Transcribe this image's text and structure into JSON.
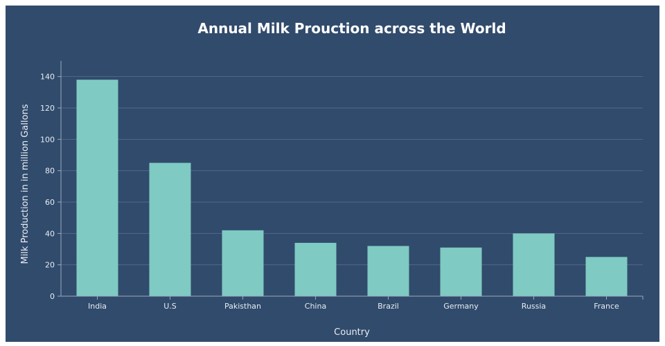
{
  "chart_data": {
    "type": "bar",
    "title": "Annual Milk Prouction across the World",
    "xlabel": "Country",
    "ylabel": "Milk Production in in million Gallons",
    "categories": [
      "India",
      "U.S",
      "Pakisthan",
      "China",
      "Brazil",
      "Germany",
      "Russia",
      "France"
    ],
    "values": [
      138,
      85,
      42,
      34,
      32,
      31,
      40,
      25
    ],
    "ylim": [
      0,
      150
    ],
    "yticks": [
      0,
      20,
      40,
      60,
      80,
      100,
      120,
      140
    ],
    "grid": true,
    "legend": "none",
    "colors": {
      "background": "#314b6c",
      "bar": "#7fcac3",
      "grid": "#52688a",
      "text": "#e8edf3"
    }
  }
}
